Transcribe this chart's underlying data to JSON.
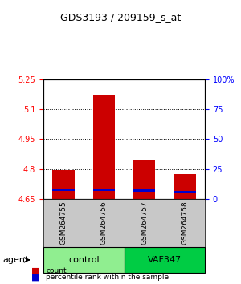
{
  "title": "GDS3193 / 209159_s_at",
  "samples": [
    "GSM264755",
    "GSM264756",
    "GSM264757",
    "GSM264758"
  ],
  "groups": [
    "control",
    "control",
    "VAF347",
    "VAF347"
  ],
  "group_labels": [
    "control",
    "VAF347"
  ],
  "group_colors": [
    "#90EE90",
    "#00CC00"
  ],
  "bar_bottom": 4.65,
  "red_tops": [
    4.795,
    5.175,
    4.845,
    4.775
  ],
  "blue_vals": [
    4.695,
    4.695,
    4.69,
    4.685
  ],
  "bar_color": "#CC0000",
  "blue_color": "#0000CC",
  "ylim_min": 4.65,
  "ylim_max": 5.25,
  "yticks_left": [
    4.65,
    4.8,
    4.95,
    5.1,
    5.25
  ],
  "yticks_right": [
    0,
    25,
    50,
    75,
    100
  ],
  "yticks_right_labels": [
    "0",
    "25",
    "50",
    "75",
    "100%"
  ],
  "grid_vals": [
    4.8,
    4.95,
    5.1
  ],
  "xlabel": "agent",
  "legend_count": "count",
  "legend_pct": "percentile rank within the sample",
  "bar_width": 0.55
}
